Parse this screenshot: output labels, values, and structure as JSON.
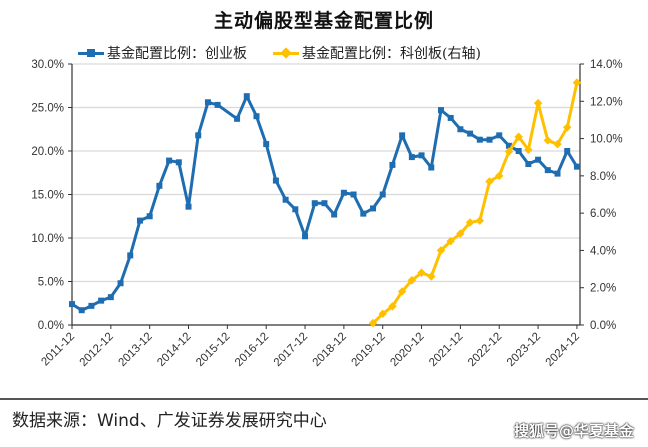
{
  "title": "主动偏股型基金配置比例",
  "legend": {
    "blue": "基金配置比例：创业板",
    "yellow": "基金配置比例：科创板(右轴)"
  },
  "source": "数据来源：Wind、广发证券发展研究中心",
  "watermark": "搜狐号@华夏基金",
  "colors": {
    "blue": "#1f6db1",
    "yellow": "#ffc000",
    "grid": "#d9d9d9",
    "axis": "#333333"
  },
  "chart_data": {
    "type": "line",
    "title": "主动偏股型基金配置比例",
    "xlabel": "",
    "ylabel_left": "",
    "ylabel_right": "",
    "ylim_left": [
      0,
      30
    ],
    "ylim_right": [
      0,
      14
    ],
    "left_ticks": [
      "0.0%",
      "5.0%",
      "10.0%",
      "15.0%",
      "20.0%",
      "25.0%",
      "30.0%"
    ],
    "right_ticks": [
      "0.0%",
      "2.0%",
      "4.0%",
      "6.0%",
      "8.0%",
      "10.0%",
      "12.0%",
      "14.0%"
    ],
    "x_tick_labels": [
      "2011-12",
      "2012-12",
      "2013-12",
      "2014-12",
      "2015-12",
      "2016-12",
      "2017-12",
      "2018-12",
      "2019-12",
      "2020-12",
      "2021-12",
      "2022-12",
      "2023-12",
      "2024-12"
    ],
    "grid": true,
    "legend_position": "top",
    "series": [
      {
        "name": "基金配置比例：创业板",
        "axis": "left",
        "color": "#1f6db1",
        "marker": "square",
        "points": [
          [
            "2011-12",
            2.4
          ],
          [
            "2012-03",
            1.7
          ],
          [
            "2012-06",
            2.2
          ],
          [
            "2012-09",
            2.8
          ],
          [
            "2012-12",
            3.2
          ],
          [
            "2013-03",
            4.8
          ],
          [
            "2013-06",
            8.0
          ],
          [
            "2013-09",
            12.0
          ],
          [
            "2013-12",
            12.5
          ],
          [
            "2014-03",
            16.0
          ],
          [
            "2014-06",
            18.9
          ],
          [
            "2014-09",
            18.7
          ],
          [
            "2014-12",
            13.6
          ],
          [
            "2015-03",
            21.8
          ],
          [
            "2015-06",
            25.6
          ],
          [
            "2015-09",
            25.3
          ],
          [
            "2016-03",
            23.7
          ],
          [
            "2016-06",
            26.3
          ],
          [
            "2016-09",
            24.0
          ],
          [
            "2016-12",
            20.8
          ],
          [
            "2017-03",
            16.6
          ],
          [
            "2017-06",
            14.4
          ],
          [
            "2017-09",
            13.3
          ],
          [
            "2017-12",
            10.2
          ],
          [
            "2018-03",
            14.0
          ],
          [
            "2018-06",
            14.0
          ],
          [
            "2018-09",
            12.7
          ],
          [
            "2018-12",
            15.2
          ],
          [
            "2019-03",
            15.0
          ],
          [
            "2019-06",
            12.8
          ],
          [
            "2019-09",
            13.4
          ],
          [
            "2019-12",
            15.0
          ],
          [
            "2020-03",
            18.4
          ],
          [
            "2020-06",
            21.8
          ],
          [
            "2020-09",
            19.3
          ],
          [
            "2020-12",
            19.5
          ],
          [
            "2021-03",
            18.1
          ],
          [
            "2021-06",
            24.7
          ],
          [
            "2021-09",
            23.8
          ],
          [
            "2021-12",
            22.5
          ],
          [
            "2022-03",
            22.0
          ],
          [
            "2022-06",
            21.3
          ],
          [
            "2022-09",
            21.3
          ],
          [
            "2022-12",
            21.8
          ],
          [
            "2023-03",
            20.6
          ],
          [
            "2023-06",
            20.0
          ],
          [
            "2023-09",
            18.5
          ],
          [
            "2023-12",
            19.0
          ],
          [
            "2024-03",
            17.8
          ],
          [
            "2024-06",
            17.4
          ],
          [
            "2024-09",
            20.0
          ],
          [
            "2024-12",
            18.2
          ]
        ]
      },
      {
        "name": "基金配置比例：科创板(右轴)",
        "axis": "right",
        "color": "#ffc000",
        "marker": "diamond",
        "points": [
          [
            "2019-09",
            0.1
          ],
          [
            "2019-12",
            0.6
          ],
          [
            "2020-03",
            1.0
          ],
          [
            "2020-06",
            1.8
          ],
          [
            "2020-09",
            2.4
          ],
          [
            "2020-12",
            2.8
          ],
          [
            "2021-03",
            2.6
          ],
          [
            "2021-06",
            4.0
          ],
          [
            "2021-09",
            4.5
          ],
          [
            "2021-12",
            4.9
          ],
          [
            "2022-03",
            5.5
          ],
          [
            "2022-06",
            5.6
          ],
          [
            "2022-09",
            7.7
          ],
          [
            "2022-12",
            8.0
          ],
          [
            "2023-03",
            9.3
          ],
          [
            "2023-06",
            10.1
          ],
          [
            "2023-09",
            9.4
          ],
          [
            "2023-12",
            11.9
          ],
          [
            "2024-03",
            9.9
          ],
          [
            "2024-06",
            9.7
          ],
          [
            "2024-09",
            10.6
          ],
          [
            "2024-12",
            13.0
          ]
        ]
      }
    ]
  }
}
